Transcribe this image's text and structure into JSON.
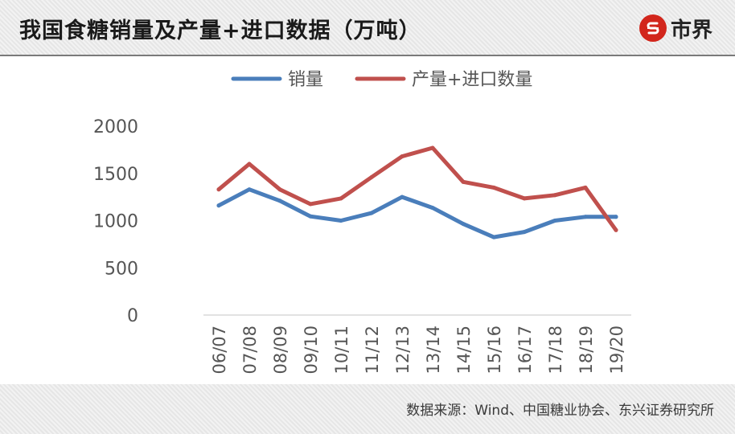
{
  "header": {
    "title": "我国食糖销量及产量+进口数据（万吨）",
    "logo_text": "市界",
    "logo_icon": "s-logo-icon",
    "logo_color": "#d2261c"
  },
  "footer": {
    "source": "数据来源：Wind、中国糖业协会、东兴证券研究所"
  },
  "chart_data": {
    "type": "line",
    "title": "",
    "xlabel": "",
    "ylabel": "",
    "ylim": [
      0,
      2000
    ],
    "yticks": [
      "0",
      "500",
      "1000",
      "1500",
      "2000"
    ],
    "grid": false,
    "legend_position": "top",
    "categories": [
      "06/07",
      "07/08",
      "08/09",
      "09/10",
      "10/11",
      "11/12",
      "12/13",
      "13/14",
      "14/15",
      "15/16",
      "16/17",
      "17/18",
      "18/19",
      "19/20"
    ],
    "series": [
      {
        "name": "销量",
        "color": "#4a7ebb",
        "values": [
          1160,
          1330,
          1210,
          1045,
          1000,
          1080,
          1250,
          1135,
          965,
          825,
          880,
          1000,
          1040,
          1040
        ]
      },
      {
        "name": "产量+进口数量",
        "color": "#c0504d",
        "values": [
          1330,
          1600,
          1330,
          1175,
          1235,
          1460,
          1680,
          1770,
          1410,
          1350,
          1235,
          1270,
          1350,
          900
        ]
      }
    ]
  }
}
